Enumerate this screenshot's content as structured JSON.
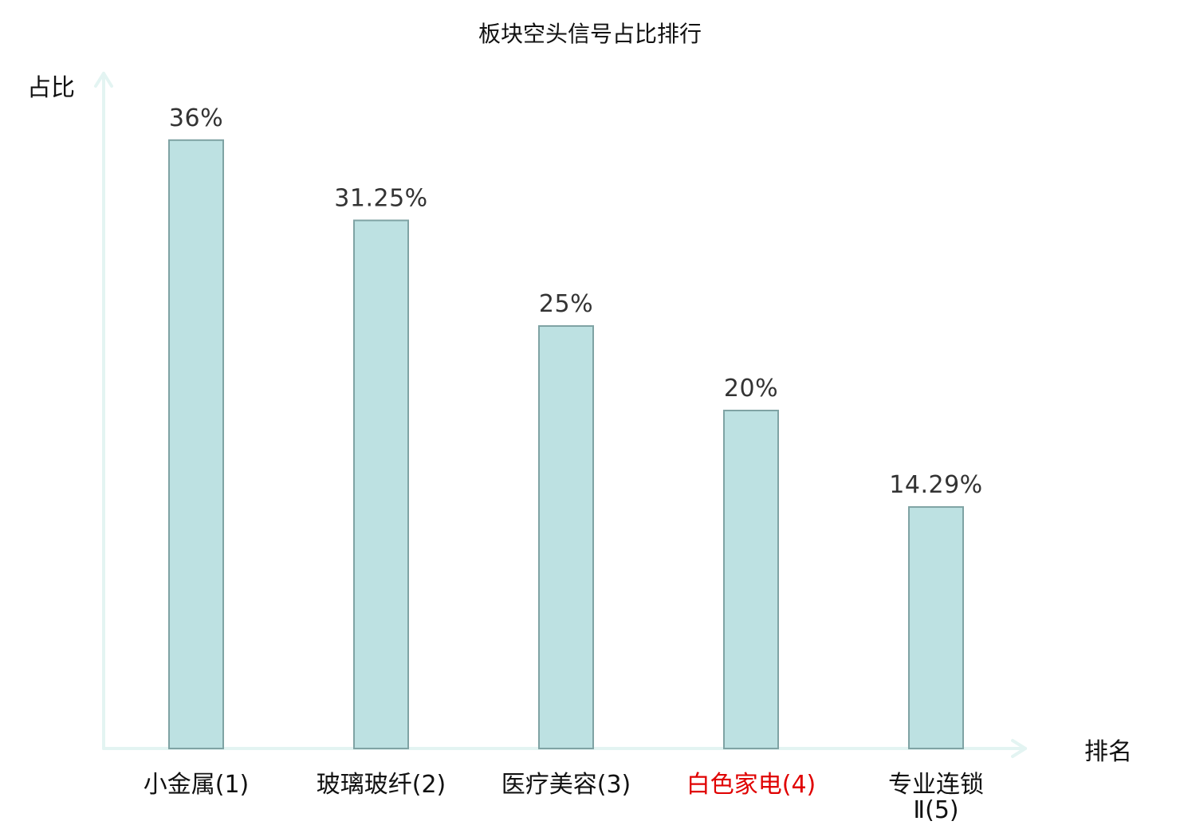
{
  "chart_data": {
    "type": "bar",
    "title": "板块空头信号占比排行",
    "ylabel": "占比",
    "xlabel": "排名",
    "ylim": [
      0,
      40
    ],
    "grid": false,
    "legend": "none",
    "categories": [
      [
        "小金属(1)"
      ],
      [
        "玻璃玻纤(2)"
      ],
      [
        "医疗美容(3)"
      ],
      [
        "白色家电(4)"
      ],
      [
        "专业连锁",
        "Ⅱ(5)"
      ]
    ],
    "values": [
      36,
      31.25,
      25,
      20,
      14.29
    ],
    "value_labels": [
      "36%",
      "31.25%",
      "25%",
      "20%",
      "14.29%"
    ],
    "highlight_index": 3,
    "colors": {
      "bar_fill": "#bde1e2",
      "bar_stroke": "#7fa3a4",
      "axis": "#e3f4f2",
      "highlight_text": "#e00000"
    }
  }
}
